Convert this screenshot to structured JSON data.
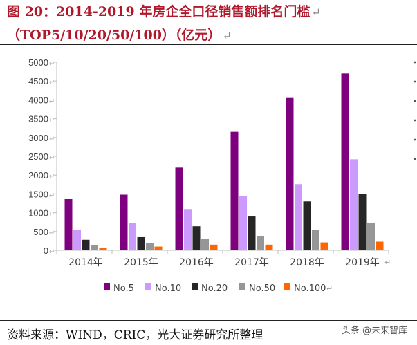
{
  "header": {
    "title_line1": "图 20：2014-2019 年房企全口径销售额排名门槛",
    "title_line2": "（TOP5/10/20/50/100）（亿元）",
    "return_mark": "↵"
  },
  "footer": {
    "source": "资料来源：WIND，CRIC，光大证券研究所整理",
    "watermark": "头条 @未来智库"
  },
  "chart_data": {
    "type": "bar",
    "categories": [
      "2014年",
      "2015年",
      "2016年",
      "2017年",
      "2018年",
      "2019年"
    ],
    "series": [
      {
        "name": "No.5",
        "color": "#7f007f",
        "values": [
          1360,
          1480,
          2200,
          3150,
          4050,
          4700
        ]
      },
      {
        "name": "No.10",
        "color": "#cc99ff",
        "values": [
          540,
          720,
          1080,
          1450,
          1760,
          2420
        ]
      },
      {
        "name": "No.20",
        "color": "#262626",
        "values": [
          280,
          350,
          640,
          900,
          1300,
          1500
        ]
      },
      {
        "name": "No.50",
        "color": "#969696",
        "values": [
          140,
          190,
          310,
          370,
          540,
          730
        ]
      },
      {
        "name": "No.100",
        "color": "#ff6600",
        "values": [
          70,
          100,
          150,
          150,
          210,
          230
        ]
      }
    ],
    "yticks": [
      "0",
      "500",
      "1000",
      "1500",
      "2000",
      "2500",
      "3000",
      "3500",
      "4000",
      "4500",
      "5000"
    ],
    "ylim": [
      0,
      5000
    ],
    "grid": false,
    "legend_position": "bottom",
    "colors": {
      "axis": "#bfbfbf",
      "text": "#404040"
    }
  }
}
